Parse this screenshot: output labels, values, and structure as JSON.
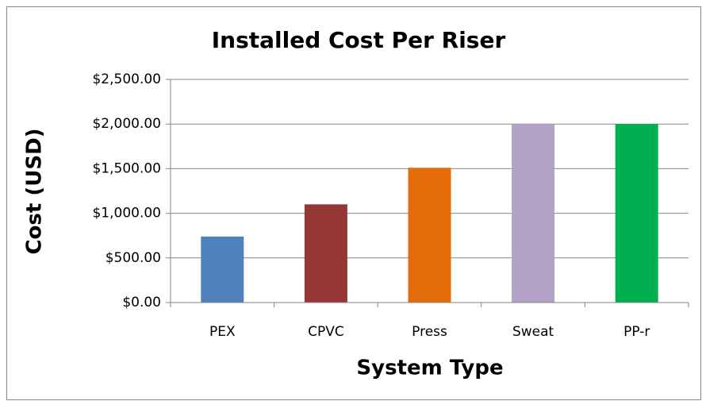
{
  "chart_data": {
    "type": "bar",
    "title": "Installed Cost Per Riser",
    "x_label": "System Type",
    "y_label": "Cost (USD)",
    "categories": [
      "PEX",
      "CPVC",
      "Press",
      "Sweat",
      "PP-r"
    ],
    "values": [
      740,
      1100,
      1510,
      2000,
      2000
    ],
    "colors": [
      "#4f81bd",
      "#953735",
      "#e46c0a",
      "#b3a2c7",
      "#00b050"
    ],
    "ylim": [
      0,
      2500
    ],
    "yticks": [
      {
        "value": 0,
        "label": "$0.00"
      },
      {
        "value": 500,
        "label": "$500.00"
      },
      {
        "value": 1000,
        "label": "$1,000.00"
      },
      {
        "value": 1500,
        "label": "$1,500.00"
      },
      {
        "value": 2000,
        "label": "$2,000.00"
      },
      {
        "value": 2500,
        "label": "$2,500.00"
      }
    ],
    "grid": true
  }
}
